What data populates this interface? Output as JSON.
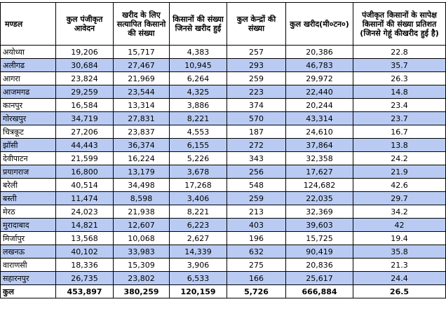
{
  "headers": [
    "मण्डल",
    "कुल पंजीकृत आवेदन",
    "खरीद के लिए सत्यापित किसानो की संख्या",
    "किसानों की संख्या जिनसे खरीद हुई",
    "कुल केन्द्रों की संख्या",
    "कुल खरीद(मी०टन०)",
    "पंजीकृत किसानों के सापेक्ष किसानों की संख्या प्रतिशत (जिनसे गेहूं कीखरीद हुई है)"
  ],
  "rows": [
    [
      "अयोध्या",
      "19,206",
      "15,717",
      "4,383",
      "257",
      "20,386",
      "22.8"
    ],
    [
      "अलीगढ",
      "30,684",
      "27,467",
      "10,945",
      "293",
      "46,783",
      "35.7"
    ],
    [
      "आगरा",
      "23,824",
      "21,969",
      "6,264",
      "259",
      "29,972",
      "26.3"
    ],
    [
      "आजमगढ",
      "29,259",
      "23,544",
      "4,325",
      "223",
      "22,440",
      "14.8"
    ],
    [
      "कानपुर",
      "16,584",
      "13,314",
      "3,886",
      "374",
      "20,244",
      "23.4"
    ],
    [
      "गोरखपुर",
      "34,719",
      "27,831",
      "8,221",
      "570",
      "43,314",
      "23.7"
    ],
    [
      "चित्रकूट",
      "27,206",
      "23,837",
      "4,553",
      "187",
      "24,610",
      "16.7"
    ],
    [
      "झॉसी",
      "44,443",
      "36,374",
      "6,155",
      "272",
      "37,864",
      "13.8"
    ],
    [
      "देवीपाटन",
      "21,599",
      "16,224",
      "5,226",
      "343",
      "32,358",
      "24.2"
    ],
    [
      "प्रयागराज",
      "16,800",
      "13,179",
      "3,678",
      "256",
      "17,627",
      "21.9"
    ],
    [
      "बरेली",
      "40,514",
      "34,498",
      "17,268",
      "548",
      "124,682",
      "42.6"
    ],
    [
      "बस्ती",
      "11,474",
      "8,598",
      "3,406",
      "259",
      "22,035",
      "29.7"
    ],
    [
      "मेरठ",
      "24,023",
      "21,938",
      "8,221",
      "213",
      "32,369",
      "34.2"
    ],
    [
      "मुरादाबाद",
      "14,821",
      "12,607",
      "6,223",
      "403",
      "39,603",
      "42"
    ],
    [
      "मिर्जापुर",
      "13,568",
      "10,068",
      "2,627",
      "196",
      "15,725",
      "19.4"
    ],
    [
      "लखनऊ",
      "40,102",
      "33,983",
      "14,339",
      "632",
      "90,419",
      "35.8"
    ],
    [
      "वाराणसी",
      "18,336",
      "15,309",
      "3,906",
      "275",
      "20,836",
      "21.3"
    ],
    [
      "सहारनपुर",
      "26,735",
      "23,802",
      "6,533",
      "166",
      "25,617",
      "24.4"
    ]
  ],
  "total": [
    "कुल",
    "453,897",
    "380,259",
    "120,159",
    "5,726",
    "666,884",
    "26.5"
  ],
  "colors": {
    "alt_row": "#b9cbf3",
    "border": "#000000"
  }
}
